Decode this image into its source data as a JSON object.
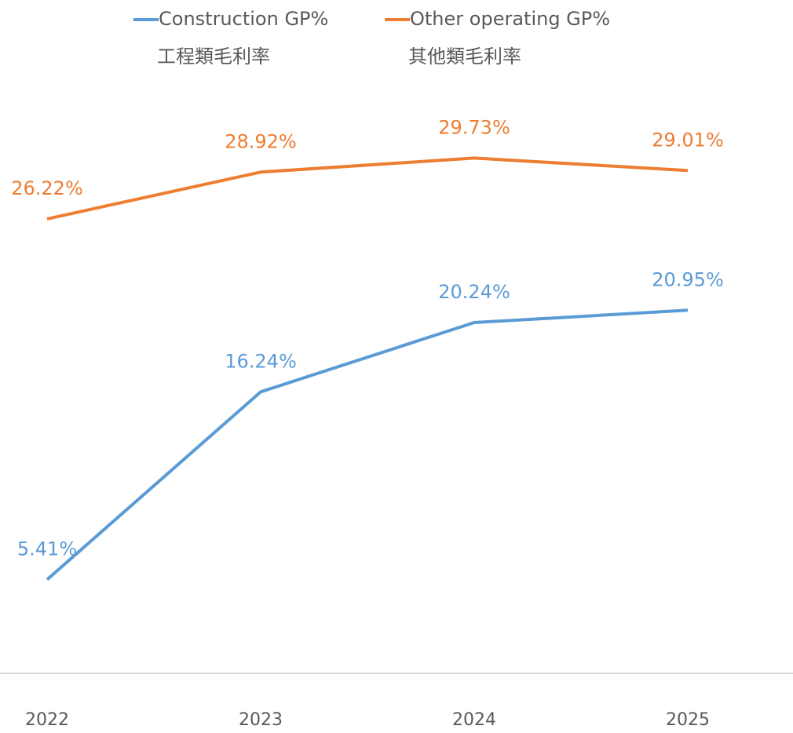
{
  "chart_data": {
    "type": "line",
    "categories": [
      "2022",
      "2023",
      "2024",
      "2025"
    ],
    "series": [
      {
        "name": "Construction GP%",
        "legend_sublabel": "工程類毛利率",
        "color": "#5b9bd5",
        "values": [
          5.41,
          16.24,
          20.24,
          20.95
        ],
        "value_labels": [
          "5.41%",
          "16.24%",
          "20.24%",
          "20.95%"
        ]
      },
      {
        "name": "Other operating GP%",
        "legend_sublabel": "其他類毛利率",
        "color": "#ed7d31",
        "values": [
          26.22,
          28.92,
          29.73,
          29.01
        ],
        "value_labels": [
          "26.22%",
          "28.92%",
          "29.73%",
          "29.01%"
        ]
      }
    ],
    "ylim": [
      0,
      35
    ],
    "legend": "top",
    "grid": false
  }
}
